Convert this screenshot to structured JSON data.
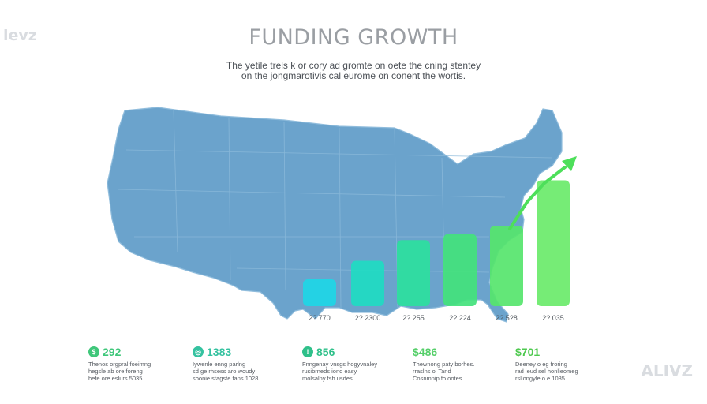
{
  "watermark_top_left": "levz",
  "watermark_bottom_right": "ALIVZ",
  "header": {
    "title": "FUNDING GROWTH",
    "subtitle_line1": "The yetile trels k or cory ad gromte on oete the cning stentey",
    "subtitle_line2": "on the jongmarotivis cal eurome on conent the wortis."
  },
  "colors": {
    "map_fill": "#6ba3cc",
    "bars": [
      "#1ed6e6",
      "#1fdbc2",
      "#2ddf9e",
      "#43e27c",
      "#56e56d",
      "#6aea6a"
    ],
    "arrow": "#4ddf5a",
    "stat_icons": [
      "#3fc77a",
      "#35c2a0",
      "#2fc08a",
      "#56cf6a",
      "#4ec94f"
    ]
  },
  "chart_data": {
    "type": "bar",
    "title": "FUNDING GROWTH",
    "categories": [
      "2? 770",
      "2? 2300",
      "2? 255",
      "2? 224",
      "2? 5?8",
      "2? 035"
    ],
    "values": [
      13,
      22,
      32,
      35,
      39,
      61
    ],
    "ylim": [
      0,
      65
    ],
    "trend_arrow": true,
    "background": "map of the United States"
  },
  "stats": [
    {
      "icon": "growth-icon",
      "glyph": "$",
      "amount": "292",
      "color": "#3fc77a",
      "desc": "Thenos orgpral foeimng\nhegsle ab ore foreng\nhefe ore eslurs 5035"
    },
    {
      "icon": "target-icon",
      "glyph": "◎",
      "amount": "1383",
      "color": "#35c2a0",
      "desc": "Iywenle enng parlng\nsd ge rhsess aro woudy\nsoonie stagste fans 1028"
    },
    {
      "icon": "info-icon",
      "glyph": "!",
      "amount": "856",
      "color": "#2fc08a",
      "desc": "Fnngenay vnsgs hogyvnaley\nrusibrneds iond easy\nmolsalny fsh usdes"
    },
    {
      "icon": "dollar-icon",
      "glyph": "$",
      "amount": "$486",
      "color": "#56cf6a",
      "desc": "Thewnong paty borhes.\nrraslns ol Tand\nCosnmnip fo ootes"
    },
    {
      "icon": "dollar-icon",
      "glyph": "$",
      "amount": "$701",
      "color": "#4ec94f",
      "desc": "Deeney o eg froring\nrad ieud sel honlieomeg\nrsliongyle o e 1085"
    }
  ]
}
